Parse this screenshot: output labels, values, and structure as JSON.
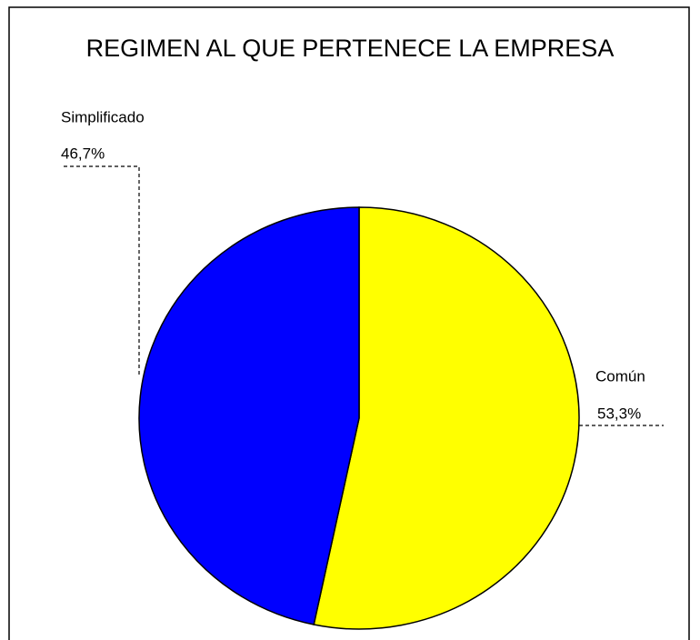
{
  "chart_data": {
    "type": "pie",
    "title": "REGIMEN AL QUE PERTENECE LA EMPRESA",
    "categories": [
      "Común",
      "Simplificado"
    ],
    "values": [
      53.3,
      46.7
    ],
    "value_labels": [
      "53,3%",
      "46,7%"
    ],
    "colors": [
      "#ffff00",
      "#0000ff"
    ]
  }
}
